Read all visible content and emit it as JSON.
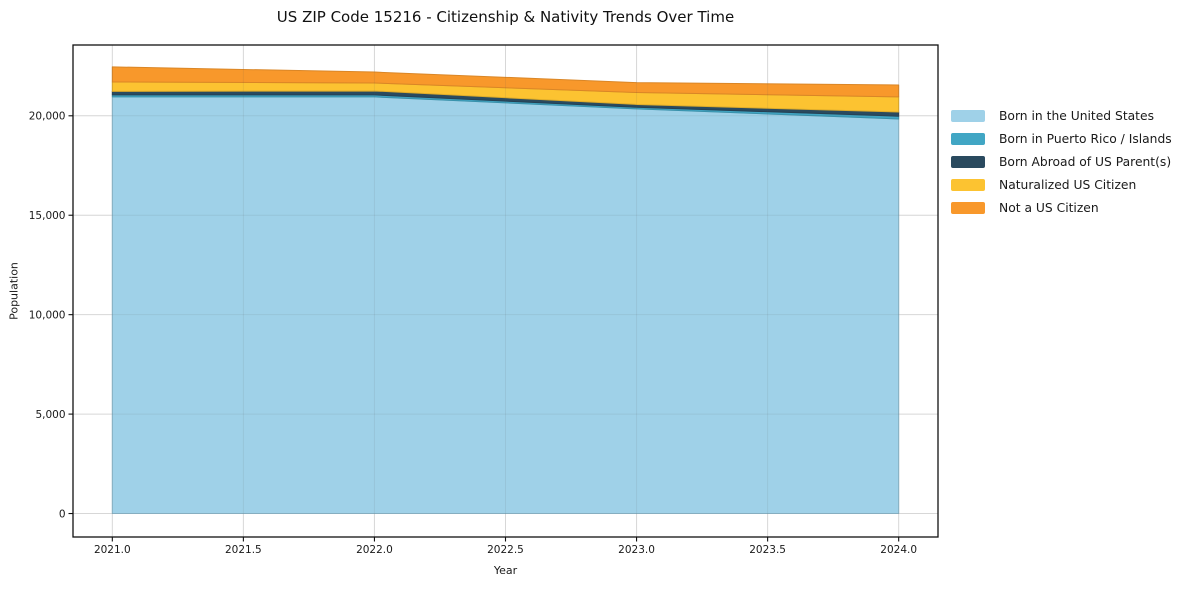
{
  "chart_data": {
    "type": "area",
    "stacked": true,
    "title": "US ZIP Code 15216 - Citizenship & Nativity Trends Over Time",
    "xlabel": "Year",
    "ylabel": "Population",
    "x": [
      2021,
      2022,
      2023,
      2024
    ],
    "series": [
      {
        "name": "Born in the United States",
        "color": "#9fd1e8",
        "values": [
          20950,
          20950,
          20350,
          19840
        ]
      },
      {
        "name": "Born in Puerto Rico / Islands",
        "color": "#41a6c4",
        "values": [
          100,
          100,
          80,
          140
        ]
      },
      {
        "name": "Born Abroad of US Parent(s)",
        "color": "#2a4a5f",
        "values": [
          180,
          200,
          140,
          210
        ]
      },
      {
        "name": "Naturalized US Citizen",
        "color": "#fcc331",
        "values": [
          470,
          400,
          600,
          760
        ]
      },
      {
        "name": "Not a US Citizen",
        "color": "#f8982b",
        "values": [
          760,
          550,
          500,
          600
        ]
      }
    ],
    "xlim": [
      2020.85,
      2024.15
    ],
    "ylim": [
      -1180,
      23560
    ],
    "xticks": {
      "values": [
        2021.0,
        2021.5,
        2022.0,
        2022.5,
        2023.0,
        2023.5,
        2024.0
      ],
      "labels": [
        "2021.0",
        "2021.5",
        "2022.0",
        "2022.5",
        "2023.0",
        "2023.5",
        "2024.0"
      ]
    },
    "yticks": {
      "values": [
        0,
        5000,
        10000,
        15000,
        20000
      ],
      "labels": [
        "0",
        "5,000",
        "10,000",
        "15,000",
        "20,000"
      ]
    },
    "grid": true,
    "legend_position": "right",
    "background_color": "#ffffff",
    "grid_color": "#e6e6e6",
    "spine_color": "#111111",
    "text_color": "#1a1a1a"
  }
}
